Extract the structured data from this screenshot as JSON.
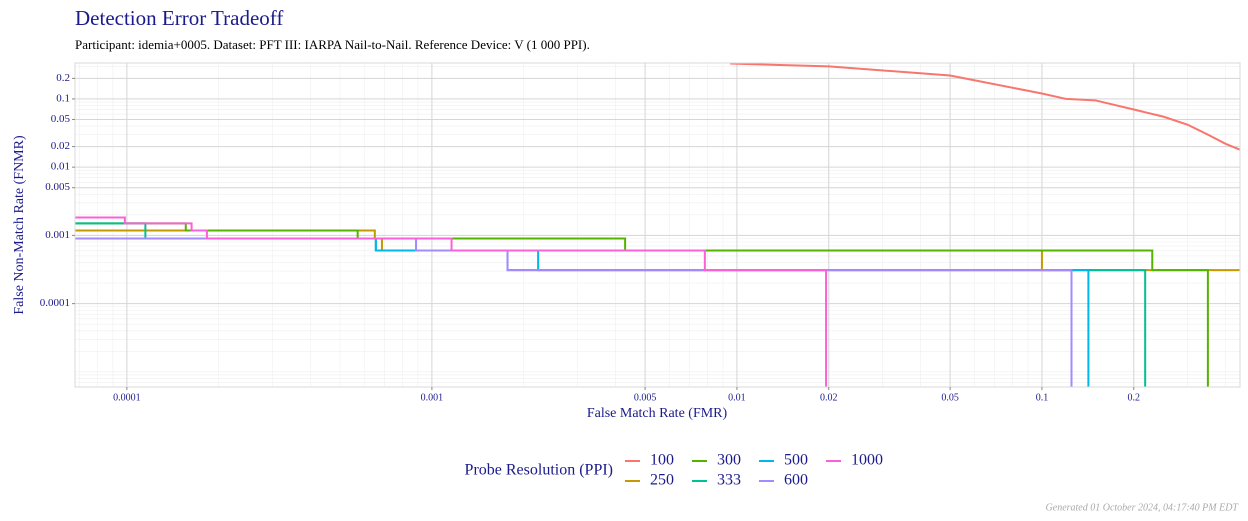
{
  "chart_data": {
    "type": "line",
    "title": "Detection Error Tradeoff",
    "subtitle": "Participant: idemia+0005. Dataset: PFT III: IARPA Nail-to-Nail. Reference Device: V (1 000 PPI).",
    "x_label": "False Match Rate (FMR)",
    "y_label": "False Non-Match Rate (FNMR)",
    "legend_title": "Probe Resolution (PPI)",
    "footer": "Generated 01 October 2024, 04:17:40 PM EDT",
    "log_x": true,
    "log_y": true,
    "grid": true,
    "step": true,
    "xlim": [
      6.76e-05,
      0.446
    ],
    "ylim": [
      6e-06,
      0.336
    ],
    "xticks": [
      0.0001,
      0.001,
      0.005,
      0.01,
      0.02,
      0.05,
      0.1,
      0.2
    ],
    "yticks": [
      0.2,
      0.1,
      0.05,
      0.02,
      0.01,
      0.005,
      0.001,
      0.0001
    ],
    "series": [
      {
        "name": "100",
        "color": "#F8766D",
        "x": [
          0.0095,
          0.02,
          0.05,
          0.1,
          0.12,
          0.15,
          0.2,
          0.25,
          0.3,
          0.35,
          0.4,
          0.446
        ],
        "values": [
          0.33,
          0.3,
          0.22,
          0.12,
          0.1,
          0.095,
          0.07,
          0.055,
          0.042,
          0.03,
          0.022,
          0.018
        ]
      },
      {
        "name": "250",
        "color": "#C49A00",
        "x": [
          6.76e-05,
          0.00065,
          0.00065,
          0.000686,
          0.000686,
          0.1,
          0.1,
          0.446
        ],
        "values": [
          0.00118,
          0.00118,
          0.0009,
          0.0009,
          0.0006,
          0.0006,
          0.00031,
          0.00031
        ]
      },
      {
        "name": "300",
        "color": "#53B400",
        "x": [
          6.76e-05,
          0.000156,
          0.000156,
          0.000571,
          0.000571,
          0.0043,
          0.0043,
          0.23,
          0.23,
          0.35,
          0.35
        ],
        "values": [
          0.0015,
          0.0015,
          0.00118,
          0.00118,
          0.0009,
          0.0009,
          0.0006,
          0.0006,
          0.00031,
          0.00031,
          6e-06
        ]
      },
      {
        "name": "333",
        "color": "#00C094",
        "x": [
          6.76e-05,
          0.000115,
          0.000115,
          0.000655,
          0.000655,
          0.00177,
          0.00177,
          0.218,
          0.218
        ],
        "values": [
          0.0015,
          0.0015,
          0.0009,
          0.0009,
          0.0006,
          0.0006,
          0.00031,
          0.00031,
          6e-06
        ]
      },
      {
        "name": "500",
        "color": "#00B6EB",
        "x": [
          6.76e-05,
          0.000655,
          0.000655,
          0.00223,
          0.00223,
          0.142,
          0.142
        ],
        "values": [
          0.0009,
          0.0009,
          0.0006,
          0.0006,
          0.00031,
          0.00031,
          6e-06
        ]
      },
      {
        "name": "600",
        "color": "#A58AFF",
        "x": [
          6.76e-05,
          0.000887,
          0.000887,
          0.00177,
          0.00177,
          0.125,
          0.125
        ],
        "values": [
          0.0009,
          0.0009,
          0.0006,
          0.0006,
          0.00031,
          0.00031,
          6e-06
        ]
      },
      {
        "name": "1000",
        "color": "#FB61D7",
        "x": [
          6.76e-05,
          9.85e-05,
          9.85e-05,
          0.000163,
          0.000163,
          0.000183,
          0.000183,
          0.00116,
          0.00116,
          0.00785,
          0.00785,
          0.0196,
          0.0196
        ],
        "values": [
          0.00183,
          0.00183,
          0.0015,
          0.0015,
          0.00118,
          0.00118,
          0.0009,
          0.0009,
          0.0006,
          0.0006,
          0.00031,
          0.00031,
          6e-06
        ]
      }
    ]
  }
}
